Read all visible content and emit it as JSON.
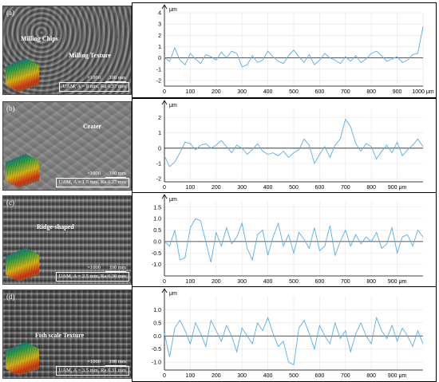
{
  "panels": [
    {
      "label": "(a)",
      "annotations": [
        "Milling Chips",
        "Milling Texture"
      ],
      "magnification": "×1000",
      "scale_bar": "100 mm",
      "caption": "UAM, A = 0 mm, Ra 0.57 mm"
    },
    {
      "label": "(b)",
      "annotations": [
        "Crater"
      ],
      "magnification": "×1000",
      "scale_bar": "100 mm",
      "caption": "UAM, A = 1.5 mm, Ra 0.27 mm"
    },
    {
      "label": "(c)",
      "annotations": [
        "Ridge-shaped"
      ],
      "magnification": "×1000",
      "scale_bar": "100 mm",
      "caption": "UAM, A = 2.5 mm, Ra 0.30 mm"
    },
    {
      "label": "(d)",
      "annotations": [
        "Fish scale Texture"
      ],
      "magnification": "×1000",
      "scale_bar": "100 mm",
      "caption": "UAM, A = 3.5 mm, Ra 0.31 mm"
    }
  ],
  "chart_data": [
    {
      "type": "line",
      "ylabel": "μm",
      "xlabel": "μm",
      "xlim": [
        0,
        1000
      ],
      "ylim": [
        -2.5,
        4
      ],
      "xticks": [
        0,
        100,
        200,
        300,
        400,
        500,
        600,
        700,
        800,
        900,
        1000
      ],
      "xtick_labels": [
        "0",
        "100",
        "200",
        "300",
        "400",
        "500",
        "600",
        "700",
        "800",
        "900",
        "1000 μm"
      ],
      "yticks": [
        -2,
        -1,
        0,
        1,
        2,
        3,
        4
      ],
      "x": [
        0,
        20,
        40,
        60,
        80,
        100,
        120,
        140,
        160,
        180,
        200,
        220,
        240,
        260,
        280,
        300,
        320,
        340,
        360,
        380,
        400,
        420,
        440,
        460,
        480,
        500,
        520,
        540,
        560,
        580,
        600,
        620,
        640,
        660,
        680,
        700,
        720,
        740,
        760,
        780,
        800,
        820,
        840,
        860,
        880,
        900,
        920,
        940,
        960,
        980,
        1000
      ],
      "y": [
        0.0,
        -0.3,
        0.9,
        -0.2,
        -0.6,
        0.4,
        -0.1,
        -0.5,
        0.3,
        0.1,
        -0.2,
        0.5,
        0.0,
        0.6,
        0.4,
        -0.8,
        -0.6,
        0.2,
        -0.4,
        -0.2,
        0.6,
        0.1,
        -0.3,
        -0.5,
        0.2,
        0.7,
        0.1,
        -0.4,
        0.3,
        -0.6,
        -0.2,
        0.4,
        0.0,
        -0.2,
        -0.5,
        0.1,
        -0.3,
        0.2,
        -0.4,
        -0.1,
        0.4,
        0.6,
        0.2,
        -0.3,
        -0.1,
        0.1,
        -0.4,
        -0.2,
        0.3,
        0.4,
        2.8
      ]
    },
    {
      "type": "line",
      "ylabel": "μm",
      "xlabel": "μm",
      "xlim": [
        0,
        1000
      ],
      "ylim": [
        -2.2,
        2.6
      ],
      "xticks": [
        0,
        100,
        200,
        300,
        400,
        500,
        600,
        700,
        800,
        900
      ],
      "xtick_labels": [
        "0",
        "100",
        "200",
        "300",
        "400",
        "500",
        "600",
        "700",
        "800",
        "900 μm"
      ],
      "yticks": [
        -2,
        -1,
        0,
        1,
        2
      ],
      "x": [
        0,
        20,
        40,
        60,
        80,
        100,
        120,
        140,
        160,
        180,
        200,
        220,
        240,
        260,
        280,
        300,
        320,
        340,
        360,
        380,
        400,
        420,
        440,
        460,
        480,
        500,
        520,
        540,
        560,
        580,
        600,
        620,
        640,
        660,
        680,
        700,
        720,
        740,
        760,
        780,
        800,
        820,
        840,
        860,
        880,
        900,
        920,
        940,
        960,
        980,
        1000
      ],
      "y": [
        -0.5,
        -1.2,
        -0.9,
        -0.3,
        0.4,
        0.3,
        -0.1,
        0.2,
        0.3,
        0.0,
        0.2,
        0.5,
        0.1,
        -0.3,
        0.2,
        0.0,
        -0.4,
        -0.1,
        0.3,
        -0.2,
        -0.4,
        -0.3,
        -0.5,
        -0.2,
        -0.6,
        -0.3,
        -0.1,
        0.6,
        0.2,
        -1.0,
        -0.4,
        0.1,
        -0.6,
        0.2,
        0.6,
        1.9,
        1.4,
        0.3,
        -0.2,
        0.3,
        0.1,
        -0.7,
        -0.2,
        0.2,
        -0.3,
        0.4,
        -0.5,
        -0.1,
        0.2,
        0.6,
        0.1
      ]
    },
    {
      "type": "line",
      "ylabel": "μm",
      "xlabel": "μm",
      "xlim": [
        0,
        1000
      ],
      "ylim": [
        -1.5,
        1.7
      ],
      "xticks": [
        0,
        100,
        200,
        300,
        400,
        500,
        600,
        700,
        800,
        900
      ],
      "xtick_labels": [
        "0",
        "100",
        "200",
        "300",
        "400",
        "500",
        "600",
        "700",
        "800",
        "900 μm"
      ],
      "yticks": [
        -1.0,
        -0.5,
        0.0,
        0.5,
        1.0,
        1.5
      ],
      "ytick_labels": [
        "-1.0",
        "-0.5",
        "0.0",
        "0.5",
        "1.0",
        "1.5"
      ],
      "x": [
        0,
        20,
        40,
        60,
        80,
        100,
        120,
        140,
        160,
        180,
        200,
        220,
        240,
        260,
        280,
        300,
        320,
        340,
        360,
        380,
        400,
        420,
        440,
        460,
        480,
        500,
        520,
        540,
        560,
        580,
        600,
        620,
        640,
        660,
        680,
        700,
        720,
        740,
        760,
        780,
        800,
        820,
        840,
        860,
        880,
        900,
        920,
        940,
        960,
        980,
        1000
      ],
      "y": [
        0.0,
        -0.2,
        0.5,
        -0.8,
        -0.7,
        0.6,
        1.0,
        0.9,
        0.0,
        -0.9,
        0.4,
        -0.2,
        0.6,
        -0.1,
        0.2,
        0.8,
        -0.3,
        -0.8,
        0.3,
        0.5,
        -0.6,
        0.2,
        0.8,
        -0.2,
        0.3,
        -0.5,
        0.4,
        0.1,
        -0.3,
        0.6,
        -0.4,
        -0.2,
        0.7,
        -0.6,
        0.0,
        0.5,
        -0.2,
        0.3,
        -0.1,
        0.2,
        0.0,
        0.4,
        -0.3,
        -0.1,
        0.6,
        -0.5,
        0.2,
        0.3,
        -0.2,
        0.5,
        0.2
      ]
    },
    {
      "type": "line",
      "ylabel": "μm",
      "xlabel": "μm",
      "xlim": [
        0,
        1000
      ],
      "ylim": [
        -1.3,
        1.5
      ],
      "xticks": [
        0,
        100,
        200,
        300,
        400,
        500,
        600,
        700,
        800,
        900
      ],
      "xtick_labels": [
        "0",
        "100",
        "200",
        "300",
        "400",
        "500",
        "600",
        "700",
        "800",
        "900 μm"
      ],
      "yticks": [
        -1.0,
        -0.5,
        0.0,
        0.5,
        1.0
      ],
      "ytick_labels": [
        "-1.0",
        "-0.5",
        "0.0",
        "0.5",
        "1.0"
      ],
      "x": [
        0,
        20,
        40,
        60,
        80,
        100,
        120,
        140,
        160,
        180,
        200,
        220,
        240,
        260,
        280,
        300,
        320,
        340,
        360,
        380,
        400,
        420,
        440,
        460,
        480,
        500,
        520,
        540,
        560,
        580,
        600,
        620,
        640,
        660,
        680,
        700,
        720,
        740,
        760,
        780,
        800,
        820,
        840,
        860,
        880,
        900,
        920,
        940,
        960,
        980,
        1000
      ],
      "y": [
        0.1,
        -0.8,
        0.3,
        0.6,
        0.2,
        -0.3,
        0.5,
        0.1,
        -0.4,
        0.6,
        0.2,
        -0.2,
        0.4,
        0.0,
        -0.6,
        0.3,
        0.0,
        -0.3,
        0.5,
        0.2,
        0.7,
        0.1,
        -0.4,
        -0.2,
        -1.0,
        -1.1,
        0.3,
        0.6,
        0.1,
        -0.5,
        0.4,
        0.0,
        -0.3,
        0.5,
        -0.1,
        0.2,
        -0.6,
        0.1,
        0.5,
        0.0,
        -0.3,
        0.7,
        0.2,
        -0.1,
        0.4,
        -0.2,
        0.3,
        0.0,
        -0.4,
        0.2,
        -0.3
      ]
    }
  ]
}
